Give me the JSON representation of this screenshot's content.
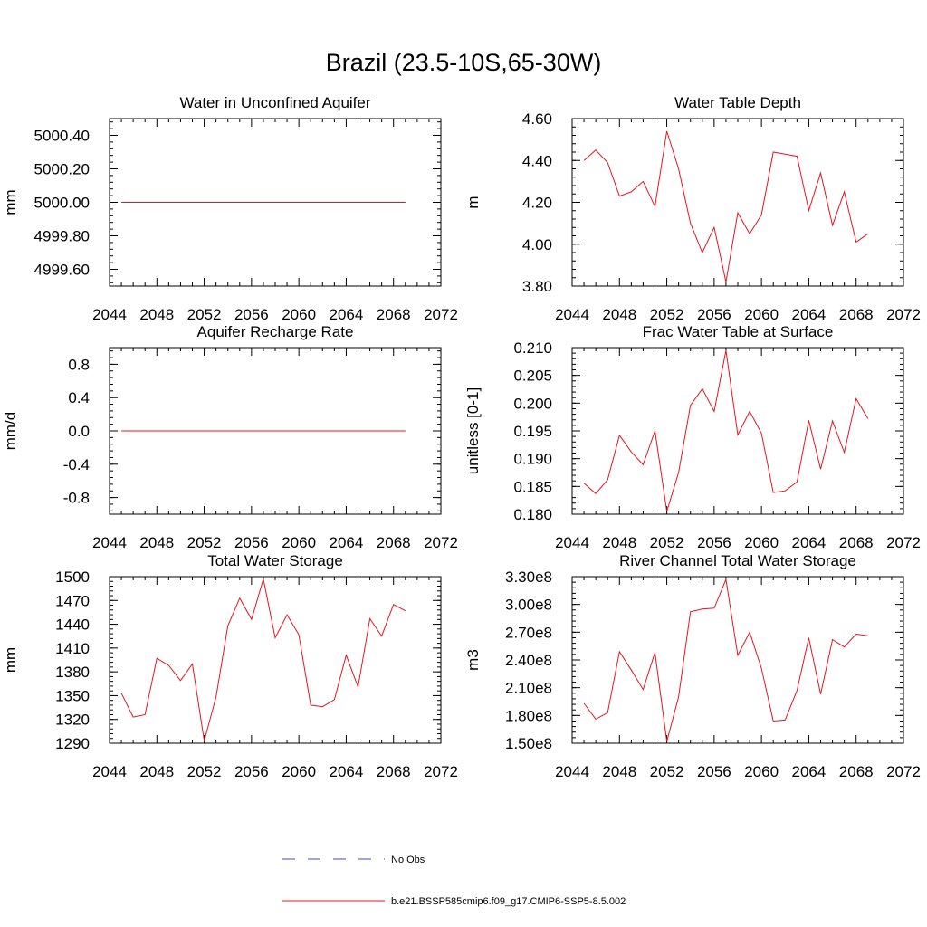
{
  "figure": {
    "title": "Brazil (23.5-10S,65-30W)"
  },
  "colors": {
    "series": "#e8141e",
    "obs": "#4a4ab0",
    "axis": "#000000"
  },
  "legend": {
    "placement": "bottom-center",
    "entries": [
      {
        "label": "No Obs",
        "style": "dashed",
        "color": "#4a4ab0"
      },
      {
        "label": "b.e21.BSSP585cmip6.f09_g17.CMIP6-SSP5-8.5.002",
        "style": "solid",
        "color": "#e8141e"
      }
    ]
  },
  "chart_data": [
    {
      "type": "line",
      "title": "Water in Unconfined Aquifer",
      "ylabel": "mm",
      "xlim": [
        2044,
        2072
      ],
      "ylim": [
        4999.5,
        5000.5
      ],
      "xticks": [
        2044,
        2048,
        2052,
        2056,
        2060,
        2064,
        2068,
        2072
      ],
      "yticks": [
        4999.6,
        4999.8,
        5000.0,
        5000.2,
        5000.4
      ],
      "ytick_labels": [
        "4999.60",
        "4999.80",
        "5000.00",
        "5000.20",
        "5000.40"
      ],
      "x": [
        2045,
        2046,
        2047,
        2048,
        2049,
        2050,
        2051,
        2052,
        2053,
        2054,
        2055,
        2056,
        2057,
        2058,
        2059,
        2060,
        2061,
        2062,
        2063,
        2064,
        2065,
        2066,
        2067,
        2068,
        2069
      ],
      "series": [
        {
          "values": [
            5000,
            5000,
            5000,
            5000,
            5000,
            5000,
            5000,
            5000,
            5000,
            5000,
            5000,
            5000,
            5000,
            5000,
            5000,
            5000,
            5000,
            5000,
            5000,
            5000,
            5000,
            5000,
            5000,
            5000,
            5000
          ]
        }
      ]
    },
    {
      "type": "line",
      "title": "Water Table Depth",
      "ylabel": "m",
      "xlim": [
        2044,
        2072
      ],
      "ylim": [
        3.8,
        4.6
      ],
      "xticks": [
        2044,
        2048,
        2052,
        2056,
        2060,
        2064,
        2068,
        2072
      ],
      "yticks": [
        3.8,
        4.0,
        4.2,
        4.4,
        4.6
      ],
      "ytick_labels": [
        "3.80",
        "4.00",
        "4.20",
        "4.40",
        "4.60"
      ],
      "x": [
        2045,
        2046,
        2047,
        2048,
        2049,
        2050,
        2051,
        2052,
        2053,
        2054,
        2055,
        2056,
        2057,
        2058,
        2059,
        2060,
        2061,
        2062,
        2063,
        2064,
        2065,
        2066,
        2067,
        2068,
        2069
      ],
      "series": [
        {
          "values": [
            4.4,
            4.45,
            4.39,
            4.23,
            4.25,
            4.3,
            4.18,
            4.54,
            4.36,
            4.1,
            3.96,
            4.08,
            3.82,
            4.15,
            4.05,
            4.14,
            4.44,
            4.43,
            4.42,
            4.16,
            4.34,
            4.09,
            4.25,
            4.01,
            4.05
          ]
        }
      ]
    },
    {
      "type": "line",
      "title": "Aquifer Recharge Rate",
      "ylabel": "mm/d",
      "xlim": [
        2044,
        2072
      ],
      "ylim": [
        -1.0,
        1.0
      ],
      "xticks": [
        2044,
        2048,
        2052,
        2056,
        2060,
        2064,
        2068,
        2072
      ],
      "yticks": [
        -0.8,
        -0.4,
        0.0,
        0.4,
        0.8
      ],
      "ytick_labels": [
        "-0.8",
        "-0.4",
        "0.0",
        "0.4",
        "0.8"
      ],
      "x": [
        2045,
        2046,
        2047,
        2048,
        2049,
        2050,
        2051,
        2052,
        2053,
        2054,
        2055,
        2056,
        2057,
        2058,
        2059,
        2060,
        2061,
        2062,
        2063,
        2064,
        2065,
        2066,
        2067,
        2068,
        2069
      ],
      "series": [
        {
          "values": [
            0,
            0,
            0,
            0,
            0,
            0,
            0,
            0,
            0,
            0,
            0,
            0,
            0,
            0,
            0,
            0,
            0,
            0,
            0,
            0,
            0,
            0,
            0,
            0,
            0
          ]
        }
      ]
    },
    {
      "type": "line",
      "title": "Frac Water Table at Surface",
      "ylabel": "unitless [0-1]",
      "xlim": [
        2044,
        2072
      ],
      "ylim": [
        0.18,
        0.21
      ],
      "xticks": [
        2044,
        2048,
        2052,
        2056,
        2060,
        2064,
        2068,
        2072
      ],
      "yticks": [
        0.18,
        0.185,
        0.19,
        0.195,
        0.2,
        0.205,
        0.21
      ],
      "ytick_labels": [
        "0.180",
        "0.185",
        "0.190",
        "0.195",
        "0.200",
        "0.205",
        "0.210"
      ],
      "x": [
        2045,
        2046,
        2047,
        2048,
        2049,
        2050,
        2051,
        2052,
        2053,
        2054,
        2055,
        2056,
        2057,
        2058,
        2059,
        2060,
        2061,
        2062,
        2063,
        2064,
        2065,
        2066,
        2067,
        2068,
        2069
      ],
      "series": [
        {
          "values": [
            0.1856,
            0.1837,
            0.1862,
            0.1942,
            0.1912,
            0.1889,
            0.195,
            0.1805,
            0.1875,
            0.1996,
            0.2026,
            0.1985,
            0.2095,
            0.1943,
            0.1985,
            0.1946,
            0.1839,
            0.1842,
            0.1858,
            0.1969,
            0.1881,
            0.1968,
            0.1911,
            0.2008,
            0.1972
          ]
        }
      ]
    },
    {
      "type": "line",
      "title": "Total Water Storage",
      "ylabel": "mm",
      "xlim": [
        2044,
        2072
      ],
      "ylim": [
        1290,
        1500
      ],
      "xticks": [
        2044,
        2048,
        2052,
        2056,
        2060,
        2064,
        2068,
        2072
      ],
      "yticks": [
        1290,
        1320,
        1350,
        1380,
        1410,
        1440,
        1470,
        1500
      ],
      "ytick_labels": [
        "1290",
        "1320",
        "1350",
        "1380",
        "1410",
        "1440",
        "1470",
        "1500"
      ],
      "x": [
        2045,
        2046,
        2047,
        2048,
        2049,
        2050,
        2051,
        2052,
        2053,
        2054,
        2055,
        2056,
        2057,
        2058,
        2059,
        2060,
        2061,
        2062,
        2063,
        2064,
        2065,
        2066,
        2067,
        2068,
        2069
      ],
      "series": [
        {
          "values": [
            1353,
            1323,
            1326,
            1397,
            1388,
            1369,
            1390,
            1293,
            1348,
            1438,
            1473,
            1446,
            1497,
            1423,
            1452,
            1427,
            1338,
            1336,
            1345,
            1401,
            1361,
            1447,
            1425,
            1465,
            1457
          ]
        }
      ]
    },
    {
      "type": "line",
      "title": "River Channel Total Water Storage",
      "ylabel": "m3",
      "xlim": [
        2044,
        2072
      ],
      "ylim": [
        150000000,
        330000000
      ],
      "xticks": [
        2044,
        2048,
        2052,
        2056,
        2060,
        2064,
        2068,
        2072
      ],
      "yticks": [
        150000000,
        180000000,
        210000000,
        240000000,
        270000000,
        300000000,
        330000000
      ],
      "ytick_labels": [
        "1.50e8",
        "1.80e8",
        "2.10e8",
        "2.40e8",
        "2.70e8",
        "3.00e8",
        "3.30e8"
      ],
      "x": [
        2045,
        2046,
        2047,
        2048,
        2049,
        2050,
        2051,
        2052,
        2053,
        2054,
        2055,
        2056,
        2057,
        2058,
        2059,
        2060,
        2061,
        2062,
        2063,
        2064,
        2065,
        2066,
        2067,
        2068,
        2069
      ],
      "series": [
        {
          "values": [
            193000000,
            176000000,
            183000000,
            249000000,
            229000000,
            208000000,
            248000000,
            152000000,
            200000000,
            292000000,
            295000000,
            296000000,
            327000000,
            245000000,
            270000000,
            231000000,
            174000000,
            175000000,
            207000000,
            264000000,
            203000000,
            262000000,
            254000000,
            268000000,
            266000000
          ]
        }
      ]
    }
  ]
}
